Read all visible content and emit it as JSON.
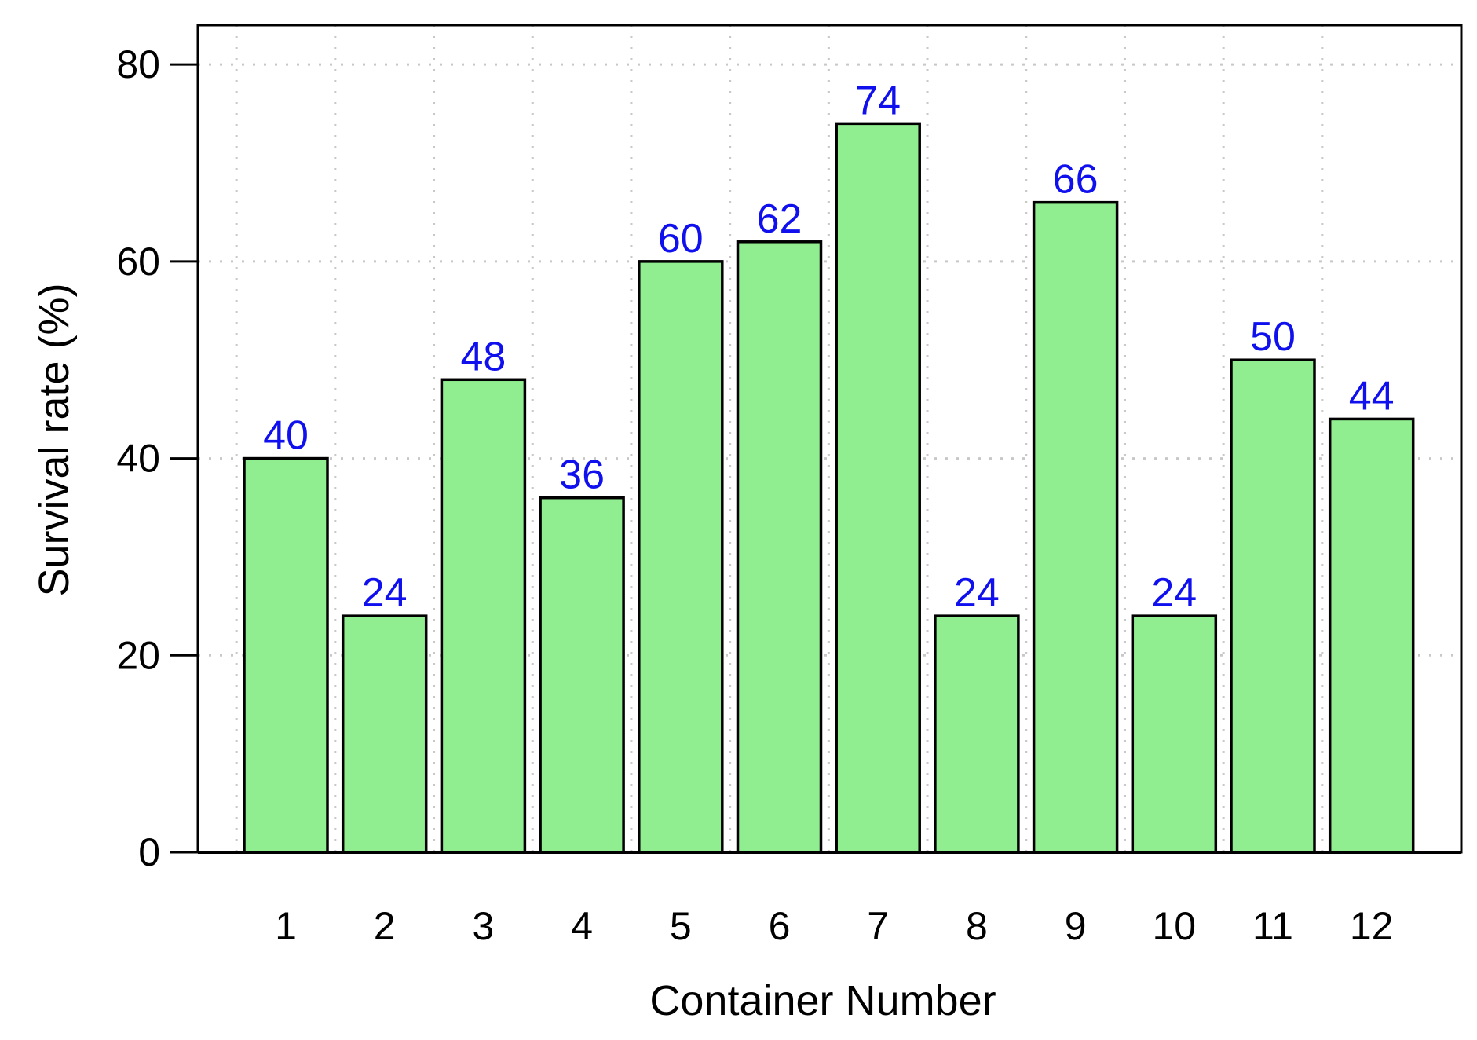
{
  "chart_data": {
    "type": "bar",
    "title": "",
    "xlabel": "Container Number",
    "ylabel": "Survival rate (%)",
    "categories": [
      "1",
      "2",
      "3",
      "4",
      "5",
      "6",
      "7",
      "8",
      "9",
      "10",
      "11",
      "12"
    ],
    "values": [
      40,
      24,
      48,
      36,
      60,
      62,
      74,
      24,
      66,
      24,
      50,
      44
    ],
    "value_labels": [
      "40",
      "24",
      "48",
      "36",
      "60",
      "62",
      "74",
      "24",
      "66",
      "24",
      "50",
      "44"
    ],
    "ylim": [
      0,
      84
    ],
    "yticks": [
      0,
      20,
      40,
      60,
      80
    ],
    "ytick_labels": [
      "0",
      "20",
      "40",
      "60",
      "80"
    ],
    "grid": true,
    "colors": {
      "bar_fill": "#90EE90",
      "bar_stroke": "#000000",
      "value_label": "#1010EE",
      "grid": "#C8C8C8"
    }
  }
}
